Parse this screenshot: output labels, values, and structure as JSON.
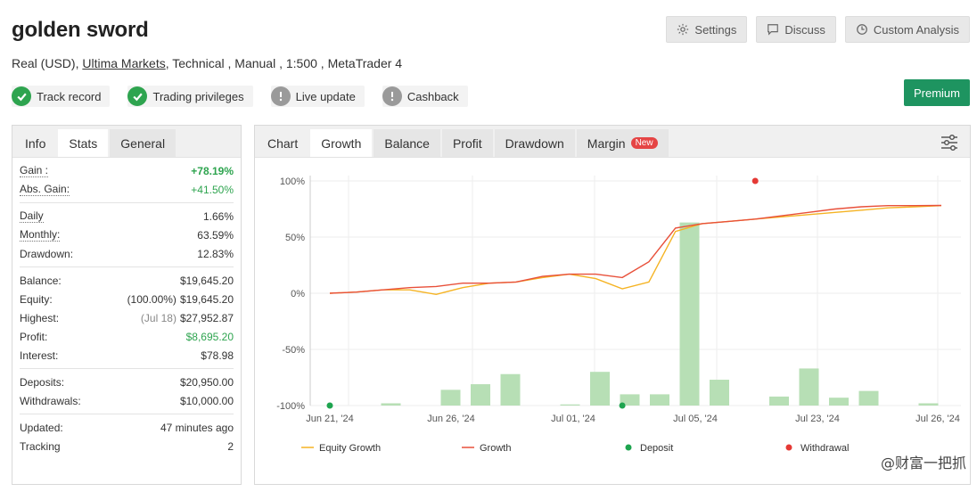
{
  "header": {
    "title": "golden sword",
    "account_type": "Real (USD)",
    "broker": "Ultima Markets",
    "details": ", Technical , Manual , 1:500 , MetaTrader 4",
    "buttons": {
      "settings": "Settings",
      "discuss": "Discuss",
      "custom": "Custom Analysis"
    },
    "premium": "Premium"
  },
  "badges": [
    {
      "label": "Track record",
      "status": "ok"
    },
    {
      "label": "Trading privileges",
      "status": "ok"
    },
    {
      "label": "Live update",
      "status": "warn"
    },
    {
      "label": "Cashback",
      "status": "warn"
    }
  ],
  "left_tabs": [
    "Info",
    "Stats",
    "General"
  ],
  "stats": {
    "gain": {
      "label": "Gain :",
      "value": "+78.19%"
    },
    "abs_gain": {
      "label": "Abs. Gain:",
      "value": "+41.50%"
    },
    "daily": {
      "label": "Daily",
      "value": "1.66%"
    },
    "monthly": {
      "label": "Monthly:",
      "value": "63.59%"
    },
    "drawdown": {
      "label": "Drawdown:",
      "value": "12.83%"
    },
    "balance": {
      "label": "Balance:",
      "value": "$19,645.20"
    },
    "equity": {
      "label": "Equity:",
      "note": "(100.00%)",
      "value": "$19,645.20"
    },
    "highest": {
      "label": "Highest:",
      "note": "(Jul 18)",
      "value": "$27,952.87"
    },
    "profit": {
      "label": "Profit:",
      "value": "$8,695.20"
    },
    "interest": {
      "label": "Interest:",
      "value": "$78.98"
    },
    "deposits": {
      "label": "Deposits:",
      "value": "$20,950.00"
    },
    "withdrawals": {
      "label": "Withdrawals:",
      "value": "$10,000.00"
    },
    "updated": {
      "label": "Updated:",
      "value": "47 minutes ago"
    },
    "tracking": {
      "label": "Tracking",
      "value": "2"
    }
  },
  "chart_tabs": [
    "Chart",
    "Growth",
    "Balance",
    "Profit",
    "Drawdown",
    "Margin"
  ],
  "chart_new_badge": "New",
  "watermark": "@财富一把抓",
  "colors": {
    "equity": "#f5b323",
    "growth": "#e8503a",
    "deposit": "#1ea44f",
    "withdrawal": "#e53935",
    "bars": "#b7dfb5"
  },
  "chart_data": {
    "type": "line",
    "x_ticks": [
      "Jun 21, '24",
      "Jun 26, '24",
      "Jul 01, '24",
      "Jul 05, '24",
      "Jul 23, '24",
      "Jul 26, '24"
    ],
    "y_ticks": [
      "100%",
      "50%",
      "0%",
      "-50%",
      "-100%"
    ],
    "ylim": [
      -100,
      100
    ],
    "series": [
      {
        "name": "Equity Growth",
        "points": [
          [
            0,
            0
          ],
          [
            1,
            1
          ],
          [
            2,
            3
          ],
          [
            3,
            3
          ],
          [
            4,
            -1
          ],
          [
            5,
            5
          ],
          [
            6,
            9
          ],
          [
            7,
            10
          ],
          [
            8,
            14
          ],
          [
            9,
            17
          ],
          [
            10,
            13
          ],
          [
            11,
            4
          ],
          [
            12,
            10
          ],
          [
            13,
            55
          ],
          [
            14,
            62
          ],
          [
            15,
            64
          ],
          [
            16,
            66
          ],
          [
            17,
            68
          ],
          [
            18,
            70
          ],
          [
            19,
            72
          ],
          [
            20,
            74
          ],
          [
            21,
            76
          ],
          [
            22,
            77
          ],
          [
            23,
            78
          ]
        ]
      },
      {
        "name": "Growth",
        "points": [
          [
            0,
            0
          ],
          [
            1,
            1
          ],
          [
            2,
            3
          ],
          [
            3,
            5
          ],
          [
            4,
            6
          ],
          [
            5,
            9
          ],
          [
            6,
            9
          ],
          [
            7,
            10
          ],
          [
            8,
            15
          ],
          [
            9,
            17
          ],
          [
            10,
            17
          ],
          [
            11,
            14
          ],
          [
            12,
            28
          ],
          [
            13,
            58
          ],
          [
            14,
            62
          ],
          [
            15,
            64
          ],
          [
            16,
            66
          ],
          [
            17,
            69
          ],
          [
            18,
            72
          ],
          [
            19,
            75
          ],
          [
            20,
            77
          ],
          [
            21,
            78
          ],
          [
            22,
            78
          ],
          [
            23,
            78.19
          ]
        ]
      }
    ],
    "bars": [
      0,
      -98,
      0,
      -86,
      -81,
      -72,
      0,
      -99,
      -70,
      -90,
      -90,
      63,
      -77,
      0,
      -92,
      -67,
      -93,
      -87,
      0,
      -98
    ],
    "deposits": [
      0,
      11
    ],
    "withdrawals": [
      [
        16,
        100
      ]
    ],
    "legend": [
      "Equity Growth",
      "Growth",
      "Deposit",
      "Withdrawal"
    ]
  }
}
